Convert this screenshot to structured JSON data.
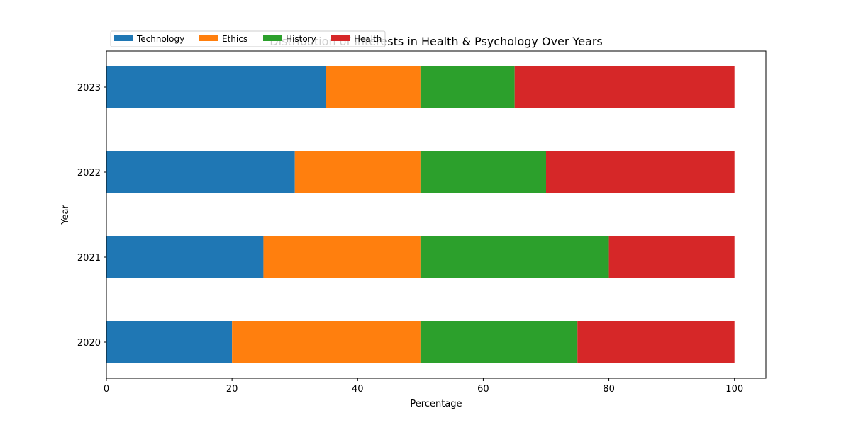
{
  "chart_data": {
    "type": "bar",
    "orientation": "horizontal",
    "stacked": true,
    "title": "Distribution of Interests in Health & Psychology Over Years",
    "xlabel": "Percentage",
    "ylabel": "Year",
    "categories": [
      "2020",
      "2021",
      "2022",
      "2023"
    ],
    "xlim": [
      0,
      105
    ],
    "xticks": [
      0,
      20,
      40,
      60,
      80,
      100
    ],
    "grid": false,
    "legend_position": "top-left",
    "series": [
      {
        "name": "Technology",
        "color": "#1f77b4",
        "values": [
          20,
          25,
          30,
          35
        ]
      },
      {
        "name": "Ethics",
        "color": "#ff7f0e",
        "values": [
          30,
          25,
          20,
          15
        ]
      },
      {
        "name": "History",
        "color": "#2ca02c",
        "values": [
          25,
          30,
          20,
          15
        ]
      },
      {
        "name": "Health",
        "color": "#d62728",
        "values": [
          25,
          20,
          30,
          35
        ]
      }
    ]
  }
}
